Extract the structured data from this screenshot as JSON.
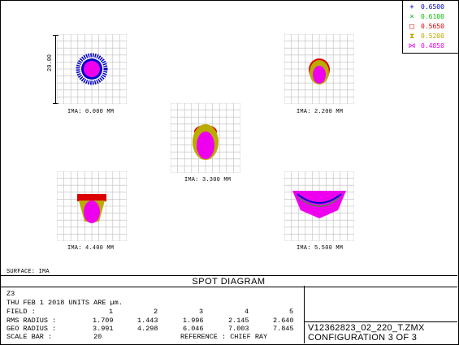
{
  "legend": [
    {
      "symbol": "+",
      "value": "0.6500",
      "color": "#0000cc"
    },
    {
      "symbol": "×",
      "value": "0.6100",
      "color": "#00bb00"
    },
    {
      "symbol": "□",
      "value": "0.5650",
      "color": "#dd0000"
    },
    {
      "symbol": "⧗",
      "value": "0.5200",
      "color": "#bbaa00"
    },
    {
      "symbol": "⋈",
      "value": "0.4850",
      "color": "#ee00ee"
    }
  ],
  "scale_bar_label": "20.00",
  "spots": [
    {
      "label": "IMA: 0.000 MM"
    },
    {
      "label": "IMA: 2.200 MM"
    },
    {
      "label": "IMA: 3.300 MM"
    },
    {
      "label": "IMA: 4.400 MM"
    },
    {
      "label": "IMA: 5.500 MM"
    }
  ],
  "surface_label": "SURFACE: IMA",
  "panel": {
    "title": "SPOT DIAGRAM",
    "line1": "Z3",
    "line2": "THU FEB 1 2018  UNITS ARE µm.",
    "field_label": "FIELD        :",
    "field_values": [
      "1",
      "2",
      "3",
      "4",
      "5"
    ],
    "rms_label": "RMS RADIUS  :",
    "rms_values": [
      "1.709",
      "1.443",
      "1.996",
      "2.145",
      "2.640"
    ],
    "geo_label": "GEO RADIUS  :",
    "geo_values": [
      "3.991",
      "4.298",
      "6.046",
      "7.003",
      "7.845"
    ],
    "scale_label": "SCALE BAR   :",
    "scale_value": "20",
    "reference": "REFERENCE  : CHIEF RAY",
    "file": "V12362823_02_220_T.ZMX",
    "configuration": "CONFIGURATION 3 OF 3"
  }
}
